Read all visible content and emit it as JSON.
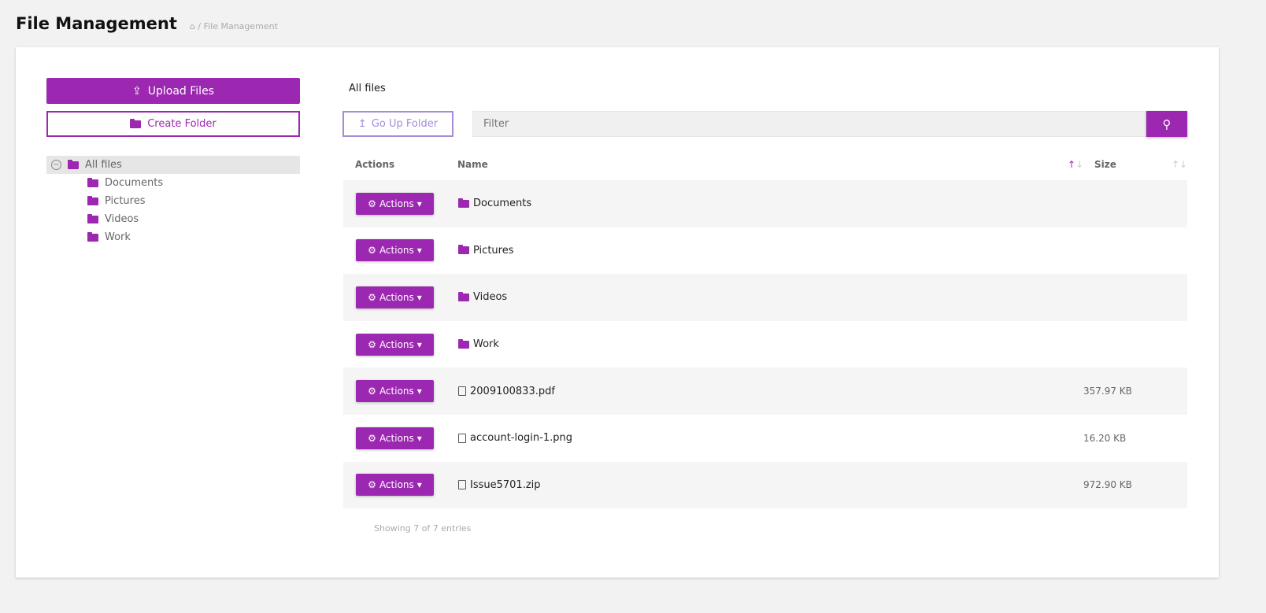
{
  "header": {
    "title": "File Management",
    "breadcrumb": "/ File Management"
  },
  "sidebar": {
    "upload_label": "Upload Files",
    "create_label": "Create Folder",
    "tree": {
      "root": "All files",
      "children": [
        "Documents",
        "Pictures",
        "Videos",
        "Work"
      ]
    }
  },
  "main": {
    "current_folder": "All files",
    "go_up_label": "Go Up Folder",
    "filter_placeholder": "Filter",
    "columns": {
      "actions": "Actions",
      "name": "Name",
      "size": "Size"
    },
    "rows": [
      {
        "action": "Actions",
        "name": "Documents",
        "type": "folder",
        "size": ""
      },
      {
        "action": "Actions",
        "name": "Pictures",
        "type": "folder",
        "size": ""
      },
      {
        "action": "Actions",
        "name": "Videos",
        "type": "folder",
        "size": ""
      },
      {
        "action": "Actions",
        "name": "Work",
        "type": "folder",
        "size": ""
      },
      {
        "action": "Actions",
        "name": "2009100833.pdf",
        "type": "file",
        "size": "357.97 KB"
      },
      {
        "action": "Actions",
        "name": "account-login-1.png",
        "type": "file",
        "size": "16.20 KB"
      },
      {
        "action": "Actions",
        "name": "Issue5701.zip",
        "type": "file",
        "size": "972.90 KB"
      }
    ],
    "footer": "Showing 7 of 7 entries"
  },
  "colors": {
    "accent": "#9c27b0",
    "secondary": "#a58bd8"
  }
}
